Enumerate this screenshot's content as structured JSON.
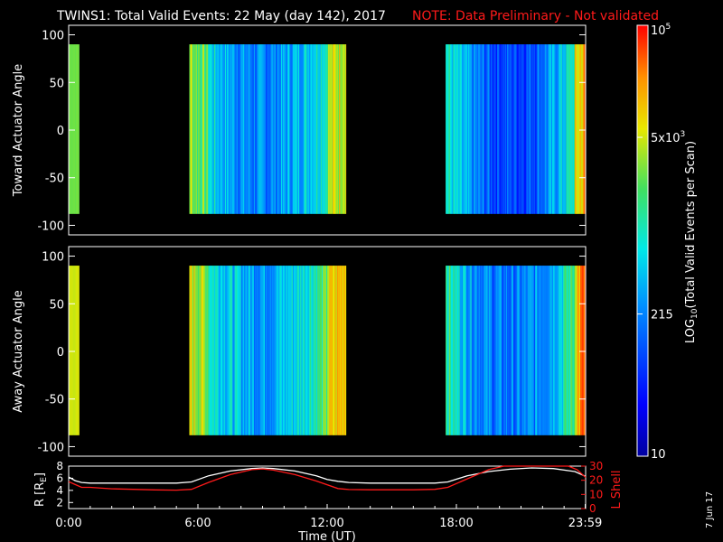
{
  "header": {
    "title": "TWINS1: Total Valid Events: 22 May (day 142), 2017",
    "note": "NOTE: Data Preliminary - Not validated"
  },
  "footer": {
    "date_stamp": "7 Jun 17",
    "xlabel": "Time (UT)"
  },
  "colors": {
    "background": "#000000",
    "note": "#ff1a1a",
    "r_line": "#ffffff",
    "lshell_line": "#ff1a1a"
  },
  "chart_data": [
    {
      "type": "heatmap",
      "name": "toward",
      "ylabel": "Toward Actuator Angle",
      "ylim": [
        -110,
        110
      ],
      "yticks": [
        "100",
        "50",
        "0",
        "-50",
        "-100"
      ],
      "x_range_hours": [
        0,
        24
      ],
      "angle_range": [
        -88,
        90
      ],
      "segments": [
        {
          "start": 0.0,
          "end": 0.48,
          "level": 0.66
        },
        {
          "start": 5.6,
          "end": 12.87,
          "profile": "pass1"
        },
        {
          "start": 17.5,
          "end": 24.0,
          "profile": "pass2"
        }
      ]
    },
    {
      "type": "heatmap",
      "name": "away",
      "ylabel": "Away Actuator Angle",
      "ylim": [
        -110,
        110
      ],
      "yticks": [
        "100",
        "50",
        "0",
        "-50",
        "-100"
      ],
      "x_range_hours": [
        0,
        24
      ],
      "angle_range": [
        -88,
        90
      ],
      "segments": [
        {
          "start": 0.0,
          "end": 0.48,
          "level": 0.74
        },
        {
          "start": 5.6,
          "end": 12.87,
          "profile": "pass1"
        },
        {
          "start": 17.5,
          "end": 24.0,
          "profile": "pass2"
        }
      ]
    },
    {
      "type": "line",
      "name": "orbit",
      "xlabel": "Time (UT)",
      "xticks": [
        "0:00",
        "6:00",
        "12:00",
        "18:00",
        "23:59"
      ],
      "ylabel_left": "R [R",
      "ylabel_left_sub": "E",
      "ylabel_left_end": "]",
      "ylabel_right": "L Shell",
      "ylim_left": [
        1,
        8
      ],
      "ylim_right": [
        0,
        30
      ],
      "yticks_left": [
        "8",
        "6",
        "4",
        "2"
      ],
      "yticks_right": [
        "30",
        "20",
        "10",
        "0"
      ],
      "series": [
        {
          "color": "#ffffff",
          "x": [
            0,
            0.3,
            0.6,
            1,
            2,
            3,
            4,
            5,
            5.7,
            6.5,
            7.5,
            8.5,
            9,
            9.5,
            10.5,
            11.5,
            12,
            12.5,
            13,
            14,
            15,
            16,
            17,
            17.6,
            18.5,
            19.5,
            20.5,
            21.5,
            22.5,
            23.5,
            24
          ],
          "y": [
            6.2,
            5.6,
            5.3,
            5.2,
            5.2,
            5.2,
            5.2,
            5.2,
            5.4,
            6.4,
            7.2,
            7.6,
            7.7,
            7.6,
            7.2,
            6.4,
            5.8,
            5.5,
            5.3,
            5.2,
            5.2,
            5.2,
            5.2,
            5.4,
            6.4,
            7.1,
            7.5,
            7.7,
            7.6,
            7.1,
            6.3
          ]
        },
        {
          "color": "#ff1a1a",
          "axis": "right",
          "x": [
            0,
            0.3,
            0.6,
            1,
            2,
            3,
            4,
            5,
            5.7,
            6.5,
            7.5,
            8.5,
            9,
            9.5,
            10.5,
            11.5,
            12.5,
            13,
            14,
            15,
            16,
            17,
            17.6,
            18.5,
            19.5,
            20.2,
            23.2,
            23.6,
            24
          ],
          "y": [
            19,
            17,
            15,
            15,
            14,
            13.6,
            13.2,
            13,
            13.6,
            18.5,
            24,
            27.5,
            28,
            27.2,
            24,
            19.5,
            14.2,
            13.5,
            13.3,
            13.3,
            13.3,
            13.6,
            15,
            21,
            27.5,
            31,
            31,
            27.5,
            22
          ]
        }
      ]
    }
  ],
  "colorbar": {
    "label_pre": "LOG",
    "label_sub": "10",
    "label_post": "(Total Valid Events per Scan)",
    "ticks": [
      {
        "base": "10",
        "exp": "5",
        "frac": 1.0
      },
      {
        "base": "5x10",
        "exp": "3",
        "frac": 0.74
      },
      {
        "base": "215",
        "exp": "",
        "frac": 0.33
      },
      {
        "base": "10",
        "exp": "",
        "frac": 0.0
      }
    ]
  }
}
